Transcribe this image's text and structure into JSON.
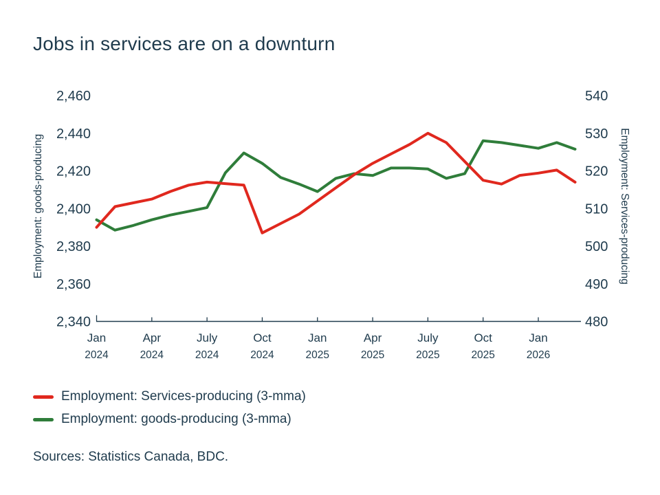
{
  "title": "Jobs in services are on a downturn",
  "source_note": "Sources: Statistics Canada, BDC.",
  "colors": {
    "text": "#1f3b4d",
    "axis": "#1f3b4d",
    "services_red": "#e0281e",
    "goods_green": "#2f7d3a"
  },
  "legend": {
    "items": [
      {
        "label": "Employment: Services-producing (3-mma)",
        "color": "#e0281e"
      },
      {
        "label": "Employment: goods-producing (3-mma)",
        "color": "#2f7d3a"
      }
    ]
  },
  "chart_data": {
    "type": "line",
    "title": "Jobs in services are on a downturn",
    "x_unit": "month",
    "months": [
      "2024-01",
      "2024-02",
      "2024-03",
      "2024-04",
      "2024-05",
      "2024-06",
      "2024-07",
      "2024-08",
      "2024-09",
      "2024-10",
      "2024-11",
      "2024-12",
      "2025-01",
      "2025-02",
      "2025-03",
      "2025-04",
      "2025-05",
      "2025-06",
      "2025-07",
      "2025-08",
      "2025-09",
      "2025-10",
      "2025-11",
      "2025-12",
      "2026-01",
      "2026-02",
      "2026-03"
    ],
    "x_tick_labels": [
      {
        "month": "Jan",
        "year": "2024"
      },
      {
        "month": "Apr",
        "year": "2024"
      },
      {
        "month": "July",
        "year": "2024"
      },
      {
        "month": "Oct",
        "year": "2024"
      },
      {
        "month": "Jan",
        "year": "2025"
      },
      {
        "month": "Apr",
        "year": "2025"
      },
      {
        "month": "July",
        "year": "2025"
      },
      {
        "month": "Oct",
        "year": "2025"
      },
      {
        "month": "Jan",
        "year": "2026"
      }
    ],
    "axes": {
      "left": {
        "title": "Employment: goods-producing",
        "min": 2340,
        "max": 2460,
        "step": 20
      },
      "right": {
        "title": "Employment: Services-producing",
        "min": 480,
        "max": 540,
        "step": 10
      }
    },
    "grid": false,
    "legend_position": "bottom-left",
    "series": [
      {
        "name": "Employment: Services-producing (3-mma)",
        "axis": "right",
        "color": "#e0281e",
        "values": [
          505,
          510.5,
          511.5,
          512.5,
          514.5,
          516.2,
          517,
          516.6,
          516.2,
          503.5,
          506,
          508.5,
          512,
          515.5,
          519,
          522,
          524.5,
          527,
          530,
          527.5,
          522.5,
          517.5,
          516.5,
          518.8,
          519.4,
          520.2,
          517
        ]
      },
      {
        "name": "Employment: goods-producing (3-mma)",
        "axis": "left",
        "color": "#2f7d3a",
        "values": [
          2394,
          2388.5,
          2391,
          2394,
          2396.5,
          2398.5,
          2400.5,
          2419,
          2429.5,
          2424,
          2416.5,
          2413,
          2409,
          2416,
          2418.5,
          2417.5,
          2421.5,
          2421.5,
          2421,
          2416,
          2418.5,
          2436,
          2435,
          2433.5,
          2432,
          2435,
          2431.5
        ]
      }
    ]
  }
}
